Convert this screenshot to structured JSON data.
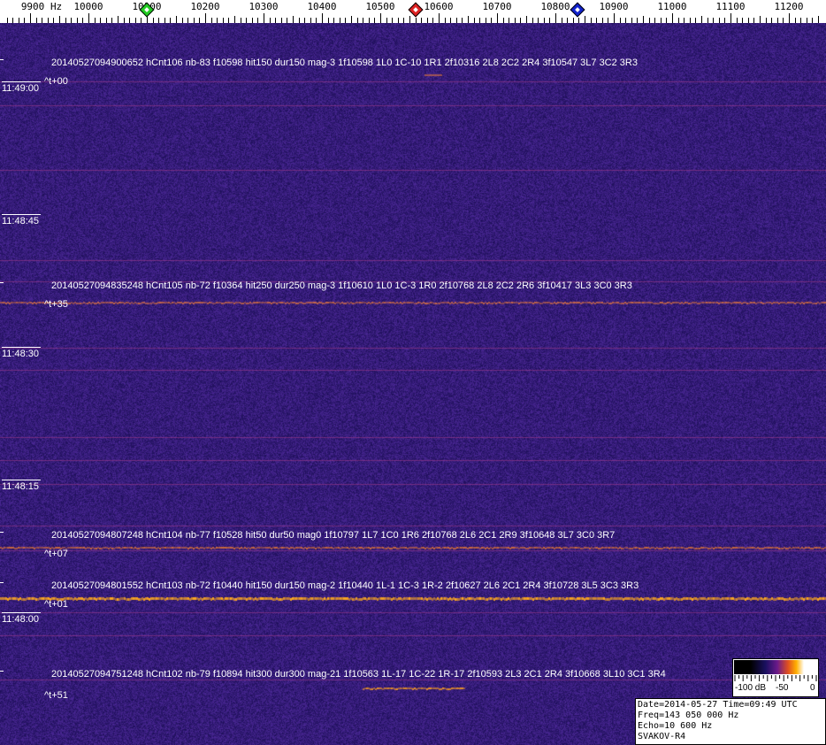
{
  "axis": {
    "unit": "Hz",
    "first_label": "9900",
    "labels": [
      "10000",
      "10100",
      "10200",
      "10300",
      "10400",
      "10500",
      "10600",
      "10700",
      "10800",
      "10900",
      "11000",
      "11100",
      "11200"
    ],
    "markers": [
      {
        "name": "green-marker",
        "freq": 10100,
        "color": "#22cc22"
      },
      {
        "name": "red-marker",
        "freq": 10560,
        "color": "#dd2222"
      },
      {
        "name": "blue-marker",
        "freq": 10838,
        "color": "#1122cc"
      }
    ]
  },
  "colors": {
    "background": "#2a1a6e",
    "trace": "#ffb020",
    "faint_line": "#9a3a8a"
  },
  "time_labels": [
    "11:49:00",
    "11:48:45",
    "11:48:30",
    "11:48:15",
    "11:48:00"
  ],
  "events": [
    {
      "text": "20140527094900652 hCnt106 nb-83 f10598 hit150 dur150 mag-3 1f10598 1L0 1C-10 1R1 2f10316 2L8 2C2 2R4 3f10547 3L7 3C2 3R3",
      "offset": "^t+00"
    },
    {
      "text": "20140527094835248 hCnt105 nb-72 f10364 hit250 dur250 mag-3 1f10610 1L0 1C-3 1R0 2f10768 2L8 2C2 2R6 3f10417 3L3 3C0 3R3",
      "offset": "^t+35"
    },
    {
      "text": "20140527094807248 hCnt104 nb-77 f10528 hit50 dur50 mag0 1f10797 1L7 1C0 1R6 2f10768 2L6 2C1 2R9 3f10648 3L7 3C0 3R7",
      "offset": "^t+07"
    },
    {
      "text": "20140527094801552 hCnt103 nb-72 f10440 hit150 dur150 mag-2 1f10440 1L-1 1C-3 1R-2 2f10627 2L6 2C1 2R4 3f10728 3L5 3C3 3R3",
      "offset": "^t+01"
    },
    {
      "text": "20140527094751248 hCnt102 nb-79 f10894 hit300 dur300 mag-21 1f10563 1L-17 1C-22 1R-17 2f10593 2L3 2C1 2R4 3f10668 3L10 3C1 3R4",
      "offset": "^t+51"
    }
  ],
  "scale": {
    "min_label": "-100 dB",
    "mid_label": "-50",
    "max_label": "0"
  },
  "info": {
    "line1": "Date=2014-05-27 Time=09:49 UTC",
    "line2": "Freq=143 050 000 Hz",
    "line3": "Echo=10 600 Hz",
    "line4": "SVAKOV-R4"
  }
}
